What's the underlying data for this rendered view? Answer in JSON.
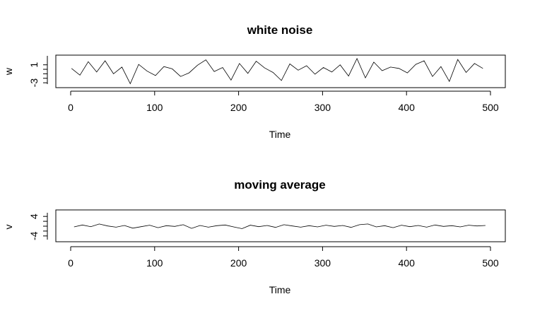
{
  "colors": {
    "background": "#ffffff",
    "line": "#000000"
  },
  "chart_data": [
    {
      "type": "line",
      "title": "white noise",
      "xlabel": "Time",
      "ylabel": "w",
      "xlim": [
        0,
        500
      ],
      "ylim": [
        -3.3,
        3.0
      ],
      "x_ticks": [
        0,
        100,
        200,
        300,
        400,
        500
      ],
      "y_ticks": [
        -3,
        1
      ],
      "x_tick_labels": [
        "0",
        "100",
        "200",
        "300",
        "400",
        "500"
      ],
      "y_tick_labels": [
        "-3",
        "1"
      ],
      "grid": false,
      "series": [
        {
          "x_start": 1,
          "x_step": 10,
          "values": [
            0.2,
            -1.3,
            1.7,
            -0.6,
            1.9,
            -1.0,
            0.5,
            -3.2,
            1.1,
            -0.4,
            -1.4,
            0.6,
            0.1,
            -1.6,
            -0.8,
            0.9,
            2.1,
            -0.5,
            0.4,
            -2.4,
            1.3,
            -0.9,
            1.8,
            0.3,
            -0.7,
            -2.5,
            1.2,
            -0.2,
            0.8,
            -1.1,
            0.4,
            -0.6,
            1.0,
            -1.5,
            2.4,
            -1.9,
            1.6,
            -0.3,
            0.5,
            0.2,
            -0.8,
            1.1,
            1.9,
            -1.6,
            0.6,
            -2.7,
            2.2,
            -0.7,
            1.3,
            0.2
          ]
        }
      ]
    },
    {
      "type": "line",
      "title": "moving average",
      "xlabel": "Time",
      "ylabel": "v",
      "xlim": [
        0,
        500
      ],
      "ylim": [
        -5.5,
        5.5
      ],
      "x_ticks": [
        0,
        100,
        200,
        300,
        400,
        500
      ],
      "y_ticks": [
        -4,
        4
      ],
      "x_tick_labels": [
        "0",
        "100",
        "200",
        "300",
        "400",
        "500"
      ],
      "y_tick_labels": [
        "-4",
        "4"
      ],
      "grid": false,
      "series": [
        {
          "x_start": 4,
          "x_step": 10,
          "values": [
            -0.3,
            0.5,
            -0.2,
            0.9,
            0.1,
            -0.4,
            0.3,
            -0.8,
            -0.2,
            0.4,
            -0.6,
            0.2,
            -0.1,
            0.6,
            -0.9,
            0.3,
            -0.4,
            0.2,
            0.5,
            -0.3,
            -1.0,
            0.4,
            -0.2,
            0.3,
            -0.5,
            0.6,
            0.1,
            -0.4,
            0.2,
            -0.3,
            0.4,
            -0.1,
            0.3,
            -0.5,
            0.6,
            0.9,
            -0.3,
            0.2,
            -0.6,
            0.4,
            -0.2,
            0.3,
            -0.4,
            0.5,
            -0.1,
            0.2,
            -0.3,
            0.4,
            0.1,
            0.3
          ]
        }
      ]
    }
  ]
}
